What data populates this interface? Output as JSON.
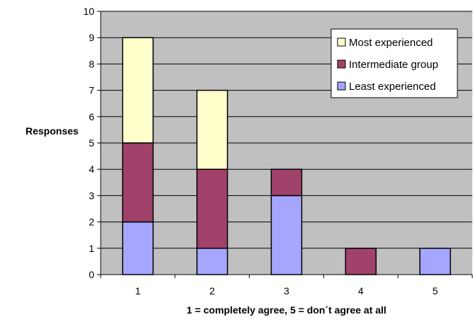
{
  "chart_data": {
    "type": "bar",
    "stacked": true,
    "categories": [
      "1",
      "2",
      "3",
      "4",
      "5"
    ],
    "series": [
      {
        "name": "Least experienced",
        "values": [
          2,
          1,
          3,
          0,
          1
        ],
        "color": "#a6a6ff"
      },
      {
        "name": "Intermediate group",
        "values": [
          3,
          3,
          1,
          1,
          0
        ],
        "color": "#a0426a"
      },
      {
        "name": "Most experienced",
        "values": [
          4,
          3,
          0,
          0,
          0
        ],
        "color": "#ffffcc"
      }
    ],
    "legend_order": [
      "Most experienced",
      "Intermediate group",
      "Least experienced"
    ],
    "ylabel": "Responses",
    "xlabel": "1 = completely agree, 5 = don´t agree at all",
    "ylim": [
      0,
      10
    ],
    "yticks": [
      0,
      1,
      2,
      3,
      4,
      5,
      6,
      7,
      8,
      9,
      10
    ],
    "grid": true,
    "legend_position": "top-right",
    "plot_background": "#c0c0c0"
  }
}
